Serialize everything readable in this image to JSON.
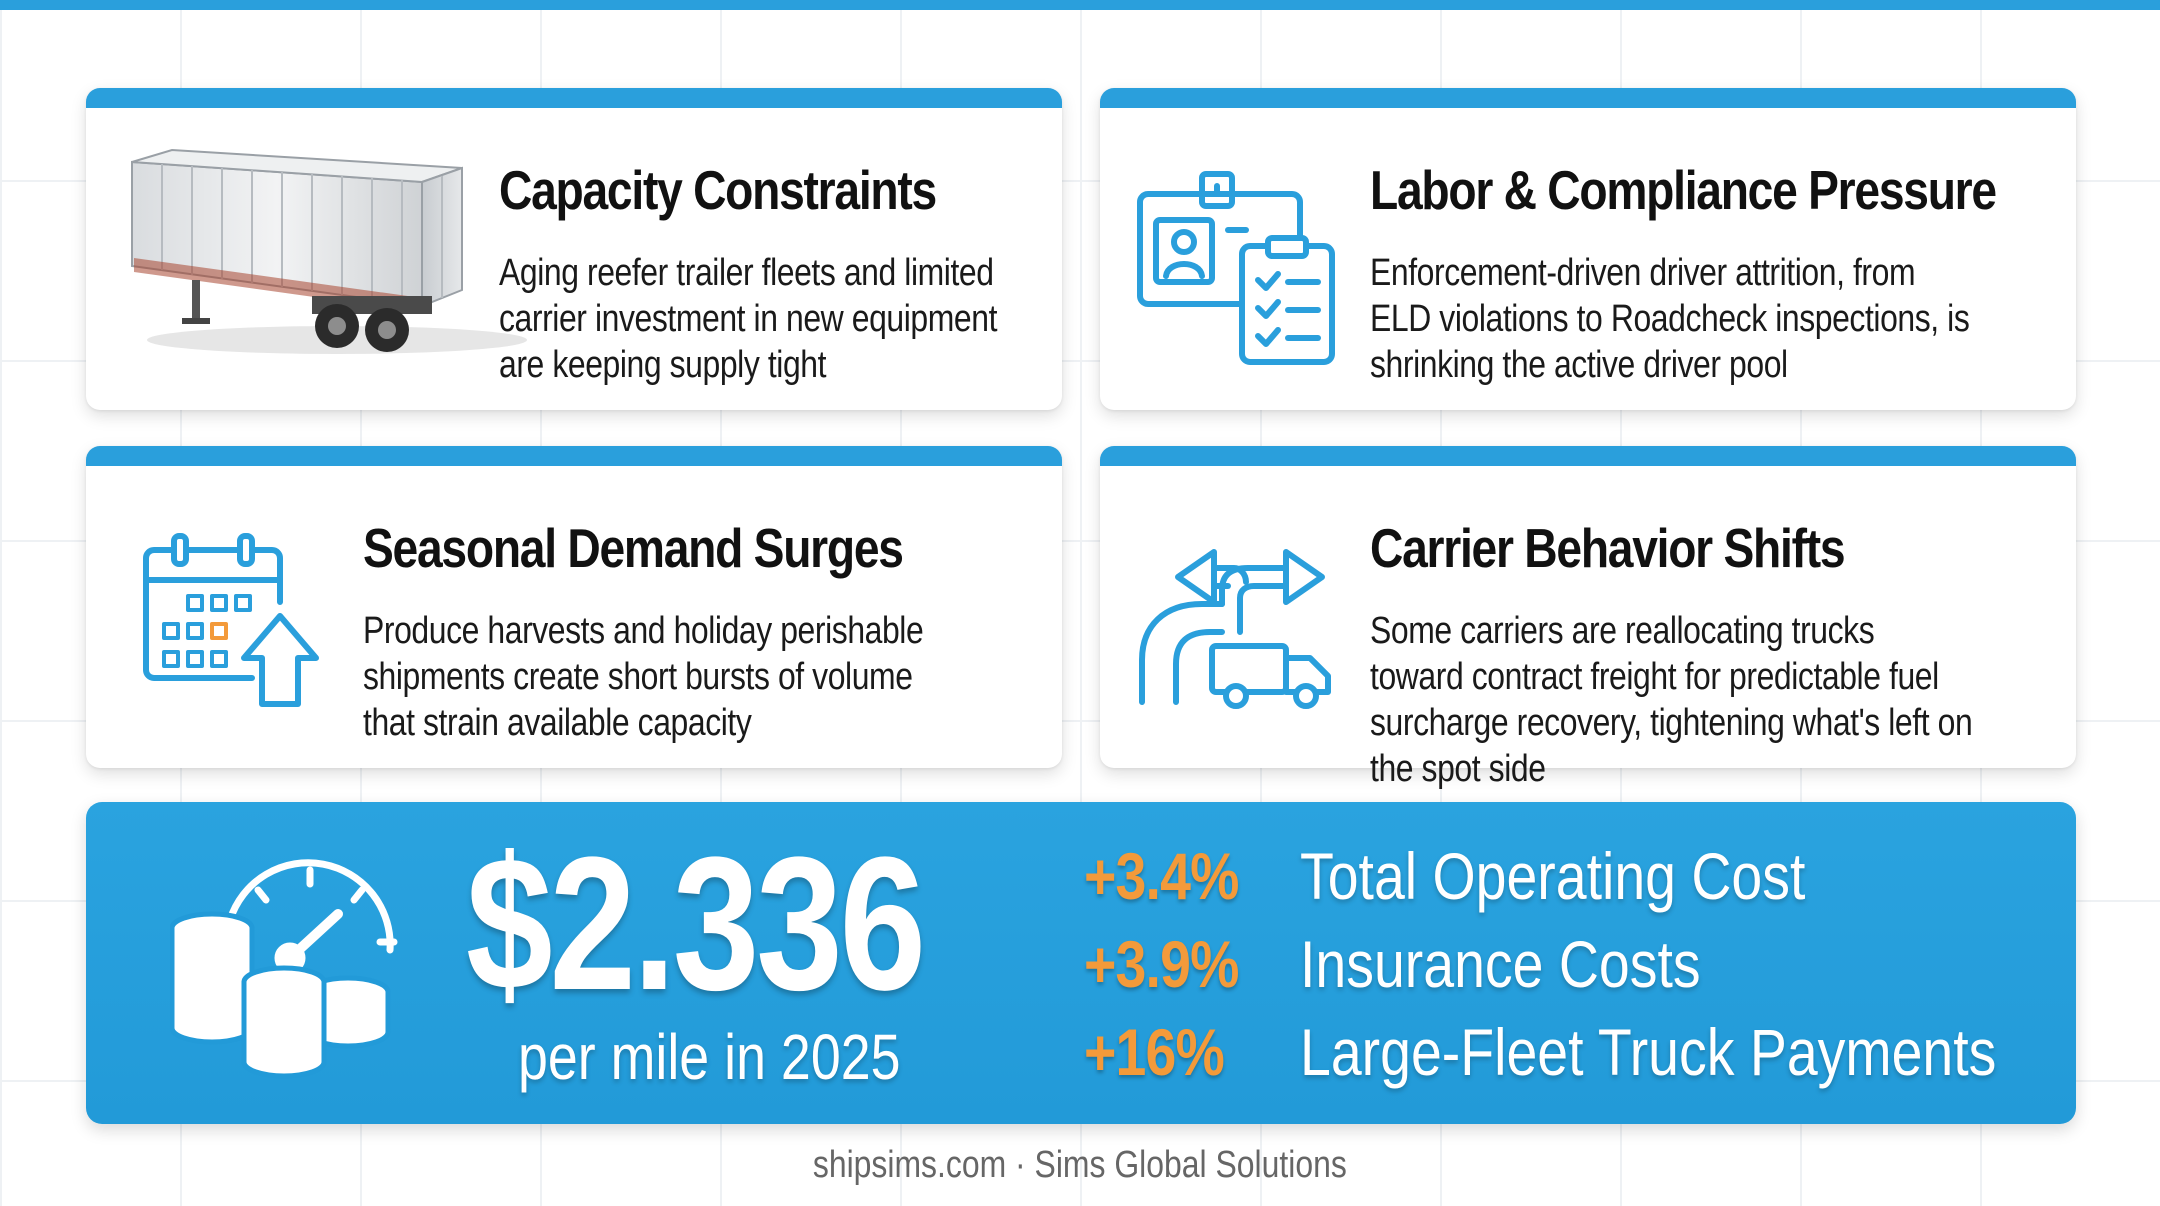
{
  "cards": [
    {
      "title": "Capacity Constraints",
      "text": "Aging reefer trailer fleets and limited carrier investment in new equipment are keeping supply tight",
      "icon": "trailer-image"
    },
    {
      "title": "Labor & Compliance Pressure",
      "text": "Enforcement-driven driver attrition, from ELD violations to Roadcheck inspections, is shrinking the active driver pool",
      "icon": "id-badge-clipboard-icon"
    },
    {
      "title": "Seasonal Demand Surges",
      "text": "Produce harvests and holiday perishable shipments create short bursts of volume that strain available capacity",
      "icon": "calendar-arrow-icon"
    },
    {
      "title": "Carrier Behavior Shifts",
      "text": "Some carriers are reallocating trucks toward contract freight for predictable fuel surcharge recovery, tightening what's left on the spot side",
      "icon": "routes-truck-icon"
    }
  ],
  "stats": {
    "value": "$2.336",
    "caption": "per mile in 2025",
    "icon": "coins-gauge-icon",
    "metrics": [
      {
        "pct": "+3.4%",
        "label": "Total Operating Cost"
      },
      {
        "pct": "+3.9%",
        "label": "Insurance Costs"
      },
      {
        "pct": "+16%",
        "label": "Large-Fleet Truck Payments"
      }
    ]
  },
  "footer": "shipsims.com · Sims Global Solutions",
  "colors": {
    "accent": "#2a9fdc",
    "highlight": "#f39a3a",
    "text": "#111111"
  }
}
